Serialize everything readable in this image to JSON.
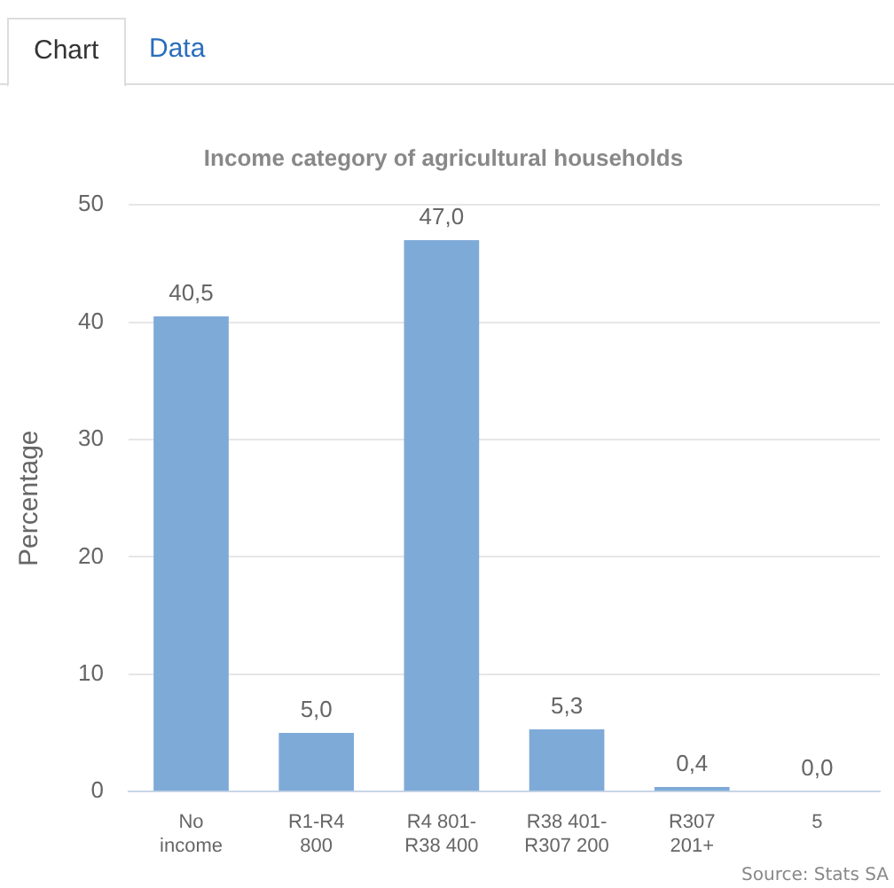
{
  "chart_data": {
    "type": "bar",
    "title": "Income category of agricultural households",
    "ylabel": "Percentage",
    "categories": [
      "No income",
      "R1-R4 800",
      "R4 801-R38 400",
      "R38 401-R307 200",
      "R307 201+",
      "5"
    ],
    "values": [
      40.5,
      5.0,
      47.0,
      5.3,
      0.4,
      0.0
    ],
    "value_labels": [
      "40,5",
      "5,0",
      "47,0",
      "5,3",
      "0,4",
      "0,0"
    ],
    "color": "#7eaad8",
    "ylim": [
      0,
      50
    ],
    "yticks": [
      0,
      10,
      20,
      30,
      40,
      50
    ],
    "grid": "y",
    "legend": false,
    "annotations": [
      "Source: Stats SA",
      "Chart",
      "Data"
    ]
  }
}
